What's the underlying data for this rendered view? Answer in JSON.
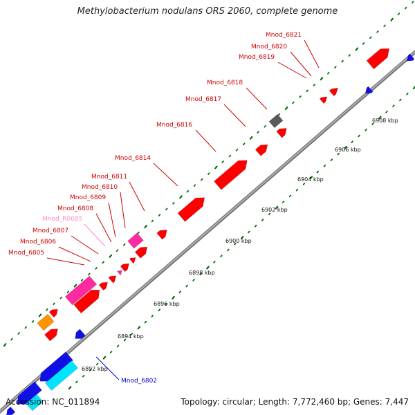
{
  "title": "Methylobacterium nodulans ORS 2060, complete genome",
  "footer": {
    "accession": "Accession: NC_011894",
    "summary": "Topology: circular; Length: 7,772,460 bp; Genes: 7,447"
  },
  "colors": {
    "background": "#ffffff",
    "backbone": "#888888",
    "gene_red": "#ff0000",
    "gene_magenta": "#ff2aa0",
    "gene_blue": "#1010e6",
    "gene_cyan": "#00e5ff",
    "gene_orange": "#ff9400",
    "gene_gray": "#5a5a5a",
    "ruler_dot": "#007000",
    "label_red": "#d00000",
    "label_pink": "#ff88cc",
    "label_blue": "#0000cc"
  },
  "ruler": {
    "ticks": [
      "6892 kbp",
      "6894 kbp",
      "6896 kbp",
      "6898 kbp",
      "6900 kbp",
      "6902 kbp",
      "6904 kbp",
      "6906 kbp",
      "6908 kbp"
    ]
  },
  "gene_labels": [
    {
      "text": "Mnod_6821",
      "color": "#d00000"
    },
    {
      "text": "Mnod_6820",
      "color": "#d00000"
    },
    {
      "text": "Mnod_6819",
      "color": "#d00000"
    },
    {
      "text": "Mnod_6818",
      "color": "#d00000"
    },
    {
      "text": "Mnod_6817",
      "color": "#d00000"
    },
    {
      "text": "Mnod_6816",
      "color": "#d00000"
    },
    {
      "text": "Mnod_6814",
      "color": "#d00000"
    },
    {
      "text": "Mnod_6811",
      "color": "#d00000"
    },
    {
      "text": "Mnod_6810",
      "color": "#d00000"
    },
    {
      "text": "Mnod_6809",
      "color": "#d00000"
    },
    {
      "text": "Mnod_6808",
      "color": "#d00000"
    },
    {
      "text": "Mnod_R0085",
      "color": "#ff88cc"
    },
    {
      "text": "Mnod_6807",
      "color": "#d00000"
    },
    {
      "text": "Mnod_6806",
      "color": "#d00000"
    },
    {
      "text": "Mnod_6805",
      "color": "#d00000"
    },
    {
      "text": "Mnod_6802",
      "color": "#0000cc"
    }
  ]
}
